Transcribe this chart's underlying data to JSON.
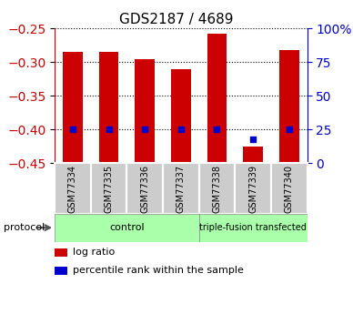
{
  "title": "GDS2187 / 4689",
  "samples": [
    "GSM77334",
    "GSM77335",
    "GSM77336",
    "GSM77337",
    "GSM77338",
    "GSM77339",
    "GSM77340"
  ],
  "log_ratios": [
    -0.285,
    -0.285,
    -0.296,
    -0.31,
    -0.258,
    -0.425,
    -0.282
  ],
  "percentile_ranks": [
    25,
    25,
    25,
    25,
    25,
    18,
    25
  ],
  "bar_color": "#cc0000",
  "dot_color": "#0000cc",
  "ylim_left": [
    -0.45,
    -0.25
  ],
  "yticks_left": [
    -0.45,
    -0.4,
    -0.35,
    -0.3,
    -0.25
  ],
  "yticks_right": [
    0,
    25,
    50,
    75,
    100
  ],
  "right_axis_color": "#0000cc",
  "left_axis_color": "#cc0000",
  "grid_color": "black",
  "xticklabel_bg": "#cccccc",
  "groups": [
    {
      "label": "control",
      "n_samples": 4,
      "color": "#aaffaa"
    },
    {
      "label": "triple-fusion transfected",
      "n_samples": 3,
      "color": "#aaffaa"
    }
  ],
  "legend_items": [
    {
      "label": "log ratio",
      "color": "#cc0000"
    },
    {
      "label": "percentile rank within the sample",
      "color": "#0000cc"
    }
  ],
  "figsize": [
    3.88,
    3.45
  ],
  "dpi": 100
}
